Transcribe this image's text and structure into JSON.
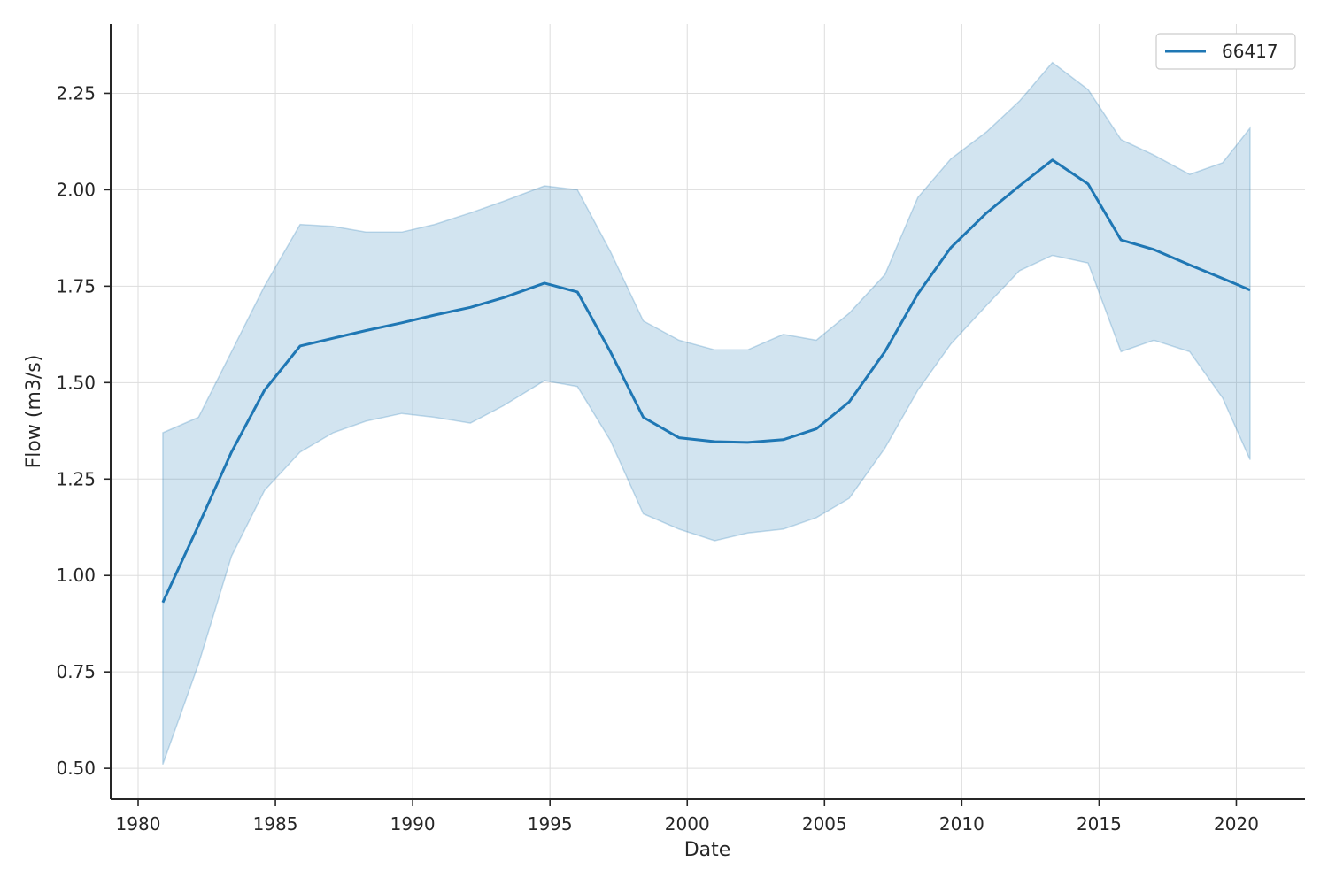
{
  "chart_data": {
    "type": "line",
    "title": "",
    "xlabel": "Date",
    "ylabel": "Flow (m3/s)",
    "xlim": [
      1979,
      2022.5
    ],
    "ylim": [
      0.42,
      2.43
    ],
    "x_ticks": [
      1980,
      1985,
      1990,
      1995,
      2000,
      2005,
      2010,
      2015,
      2020
    ],
    "x_tick_labels": [
      "1980",
      "1985",
      "1990",
      "1995",
      "2000",
      "2005",
      "2010",
      "2015",
      "2020"
    ],
    "y_ticks": [
      0.5,
      0.75,
      1.0,
      1.25,
      1.5,
      1.75,
      2.0,
      2.25
    ],
    "y_tick_labels": [
      "0.50",
      "0.75",
      "1.00",
      "1.25",
      "1.50",
      "1.75",
      "2.00",
      "2.25"
    ],
    "grid": true,
    "legend_position": "top-right",
    "colors": {
      "line": "#1f77b4",
      "band": "#1f77b4",
      "axis": "#262626",
      "grid": "#dddddd"
    },
    "series": [
      {
        "name": "66417",
        "x": [
          1980.9,
          1982.2,
          1983.4,
          1984.6,
          1985.9,
          1987.1,
          1988.3,
          1989.6,
          1990.8,
          1992.1,
          1993.3,
          1994.8,
          1996.0,
          1997.2,
          1998.4,
          1999.7,
          2001.0,
          2002.2,
          2003.5,
          2004.7,
          2005.9,
          2007.2,
          2008.4,
          2009.6,
          2010.9,
          2012.1,
          2013.3,
          2014.6,
          2015.8,
          2017.0,
          2018.3,
          2019.5,
          2020.5
        ],
        "y": [
          0.93,
          1.13,
          1.32,
          1.48,
          1.595,
          1.615,
          1.635,
          1.655,
          1.675,
          1.695,
          1.72,
          1.758,
          1.735,
          1.58,
          1.41,
          1.357,
          1.347,
          1.345,
          1.352,
          1.38,
          1.45,
          1.58,
          1.73,
          1.85,
          1.94,
          2.01,
          2.077,
          2.015,
          1.87,
          1.845,
          1.805,
          1.77,
          1.74
        ],
        "upper": [
          1.37,
          1.41,
          1.58,
          1.75,
          1.91,
          1.905,
          1.89,
          1.89,
          1.91,
          1.94,
          1.97,
          2.01,
          2.0,
          1.84,
          1.66,
          1.61,
          1.585,
          1.585,
          1.625,
          1.61,
          1.68,
          1.78,
          1.98,
          2.08,
          2.15,
          2.23,
          2.33,
          2.26,
          2.13,
          2.09,
          2.04,
          2.07,
          2.16
        ],
        "lower": [
          0.51,
          0.77,
          1.05,
          1.22,
          1.32,
          1.37,
          1.4,
          1.42,
          1.41,
          1.395,
          1.44,
          1.505,
          1.49,
          1.35,
          1.16,
          1.12,
          1.09,
          1.11,
          1.12,
          1.15,
          1.2,
          1.33,
          1.48,
          1.6,
          1.7,
          1.79,
          1.83,
          1.81,
          1.58,
          1.61,
          1.58,
          1.46,
          1.3
        ]
      }
    ]
  }
}
